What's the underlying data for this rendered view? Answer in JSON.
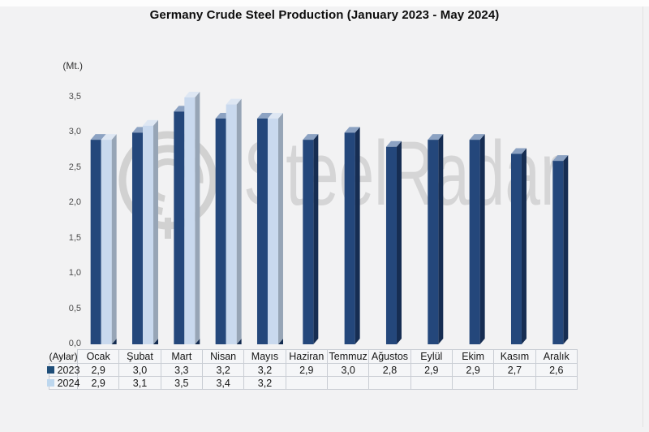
{
  "title": "Germany Crude Steel Production (January 2023 - May 2024)",
  "y_axis_unit": "(Mt.)",
  "x_axis_label": "(Aylar)",
  "watermark": {
    "text": "SteelRadar",
    "color": "#c6c6c6"
  },
  "legend": [
    {
      "label": "2023",
      "swatch_color": "#1F4E79"
    },
    {
      "label": "2024",
      "swatch_color": "#BDD7EE"
    }
  ],
  "chart_data": {
    "type": "bar",
    "title": "Germany Crude Steel Production (January 2023 - May 2024)",
    "categories": [
      "Ocak",
      "Şubat",
      "Mart",
      "Nisan",
      "Mayıs",
      "Haziran",
      "Temmuz",
      "Ağustos",
      "Eylül",
      "Ekim",
      "Kasım",
      "Aralık"
    ],
    "series": [
      {
        "name": "2023",
        "values": [
          2.9,
          3.0,
          3.3,
          3.2,
          3.2,
          2.9,
          3.0,
          2.8,
          2.9,
          2.9,
          2.7,
          2.6
        ],
        "display": [
          "2,9",
          "3,0",
          "3,3",
          "3,2",
          "3,2",
          "2,9",
          "3,0",
          "2,8",
          "2,9",
          "2,9",
          "2,7",
          "2,6"
        ]
      },
      {
        "name": "2024",
        "values": [
          2.9,
          3.1,
          3.5,
          3.4,
          3.2,
          null,
          null,
          null,
          null,
          null,
          null,
          null
        ],
        "display": [
          "2,9",
          "3,1",
          "3,5",
          "3,4",
          "3,2",
          "",
          "",
          "",
          "",
          "",
          "",
          ""
        ]
      }
    ],
    "xlabel": "(Aylar)",
    "ylabel": "(Mt.)",
    "ylim": [
      0,
      3.5
    ],
    "ytick_labels": [
      "0,0",
      "0,5",
      "1,0",
      "1,5",
      "2,0",
      "2,5",
      "3,0",
      "3,5"
    ],
    "ytick_values": [
      0,
      0.5,
      1.0,
      1.5,
      2.0,
      2.5,
      3.0,
      3.5
    ],
    "grid": false,
    "bar_style": "3d",
    "legend_position": "bottom-left-table"
  },
  "colors": {
    "background": "#f2f2f3",
    "bar2023_front": "#24477B",
    "bar2023_top": "#8CA2C2",
    "bar2023_side": "#162D52",
    "bar2024_front": "#C9D9EE",
    "bar2024_top": "#DEE7F3",
    "bar2024_side": "#97A5B6",
    "base_wedge": "#132B50",
    "table_border": "#c9cdd4"
  }
}
